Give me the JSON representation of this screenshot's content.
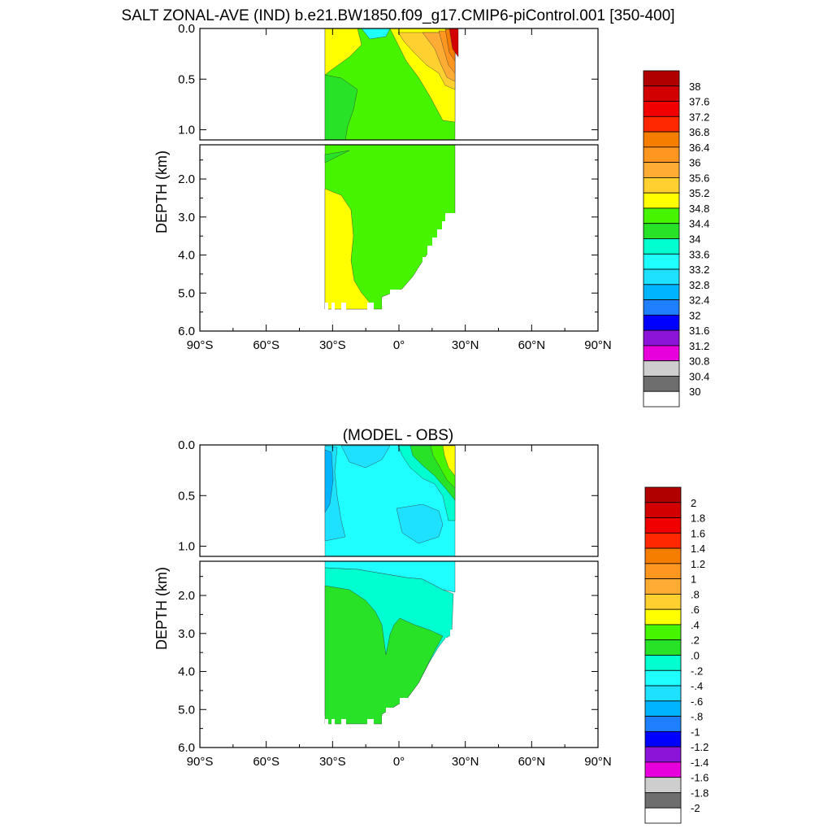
{
  "title": "SALT ZONAL-AVE (IND) b.e21.BW1850.f09_g17.CMIP6-piControl.001 [350-400]",
  "chart_data": [
    {
      "type": "heatmap",
      "panel": "top",
      "title": "",
      "ylabel": "DEPTH (km)",
      "xlabel": "",
      "x_range": [
        -90,
        90
      ],
      "y_range": [
        0,
        6
      ],
      "y_inverted": true,
      "y_split_at_km": 1.1,
      "x_tick_labels": [
        "90°S",
        "60°S",
        "30°S",
        "0°",
        "30°N",
        "60°N",
        "90°N"
      ],
      "y_tick_labels_upper": [
        "0.0",
        "0.5",
        "1.0"
      ],
      "y_tick_labels_lower": [
        "2.0",
        "3.0",
        "4.0",
        "5.0",
        "6.0"
      ],
      "data_extent_lat": [
        -34,
        25
      ],
      "colorbar": {
        "labels": [
          "38",
          "37.6",
          "37.2",
          "36.8",
          "36.4",
          "36",
          "35.6",
          "35.2",
          "34.8",
          "34.4",
          "34",
          "33.6",
          "33.2",
          "32.8",
          "32.4",
          "32",
          "31.6",
          "31.2",
          "30.8",
          "30.4",
          "30"
        ],
        "colors": [
          "#b00000",
          "#d30000",
          "#f00000",
          "#ff2800",
          "#f57e00",
          "#ff9620",
          "#ffac34",
          "#ffd030",
          "#ffff00",
          "#47f400",
          "#28e228",
          "#00ffd0",
          "#1fffff",
          "#1ee0ff",
          "#00b4ff",
          "#1e80ff",
          "#0000ff",
          "#8c14d8",
          "#e800dc",
          "#cecece",
          "#6e6e6e",
          "#ffffff"
        ]
      }
    },
    {
      "type": "heatmap",
      "panel": "bottom",
      "title": "(MODEL - OBS)",
      "ylabel": "DEPTH (km)",
      "xlabel": "",
      "x_range": [
        -90,
        90
      ],
      "y_range": [
        0,
        6
      ],
      "y_inverted": true,
      "y_split_at_km": 1.1,
      "x_tick_labels": [
        "90°S",
        "60°S",
        "30°S",
        "0°",
        "30°N",
        "60°N",
        "90°N"
      ],
      "y_tick_labels_upper": [
        "0.0",
        "0.5",
        "1.0"
      ],
      "y_tick_labels_lower": [
        "2.0",
        "3.0",
        "4.0",
        "5.0",
        "6.0"
      ],
      "data_extent_lat": [
        -34,
        25
      ],
      "colorbar": {
        "labels": [
          "2",
          "1.8",
          "1.6",
          "1.4",
          "1.2",
          "1",
          ".8",
          ".6",
          ".4",
          ".2",
          ".0",
          "-.2",
          "-.4",
          "-.6",
          "-.8",
          "-1",
          "-1.2",
          "-1.4",
          "-1.6",
          "-1.8",
          "-2"
        ],
        "colors": [
          "#b00000",
          "#d30000",
          "#f00000",
          "#ff2800",
          "#f57e00",
          "#ff9620",
          "#ffac34",
          "#ffd030",
          "#ffff00",
          "#47f400",
          "#28e228",
          "#00ffd0",
          "#1fffff",
          "#1ee0ff",
          "#00b4ff",
          "#1e80ff",
          "#0000ff",
          "#8c14d8",
          "#e800dc",
          "#cecece",
          "#6e6e6e",
          "#ffffff"
        ]
      }
    }
  ]
}
